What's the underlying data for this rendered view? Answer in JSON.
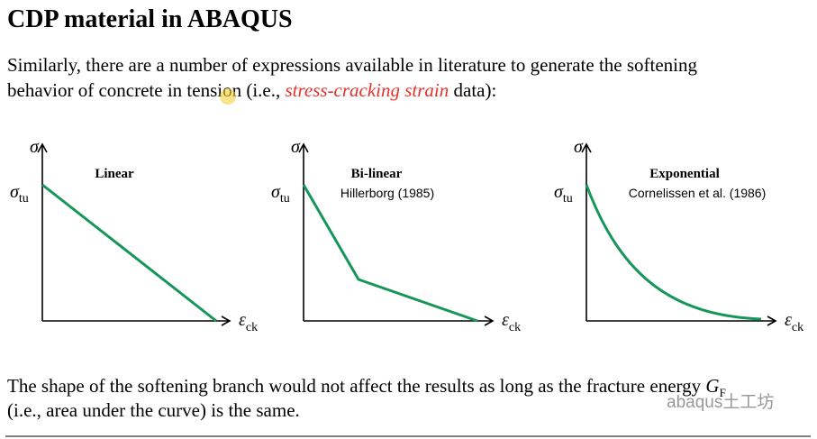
{
  "header": {
    "title": "CDP material in ABAQUS"
  },
  "intro": {
    "line1": "Similarly, there are a number of expressions available in literature to generate the softening",
    "line2_start": "behavior of concrete in tension (i.e., ",
    "highlight": "stress-cracking strain",
    "line2_end": " data):"
  },
  "axes": {
    "y": "σ",
    "peak": "σ",
    "peak_sub": "tu",
    "x": "ε",
    "x_sub": "ck"
  },
  "diagrams": [
    {
      "title": "Linear"
    },
    {
      "title": "Bi-linear",
      "source": "Hillerborg (1985)"
    },
    {
      "title": "Exponential",
      "source": "Cornelissen et al. (1986)"
    }
  ],
  "conclusion": {
    "line1": "The shape of the softening branch would not affect the results as long as the fracture energy ",
    "symbol": "G",
    "symbol_sub": "F",
    "line2": "(i.e., area under the curve) is the same."
  },
  "watermark": "abaqus土工坊"
}
